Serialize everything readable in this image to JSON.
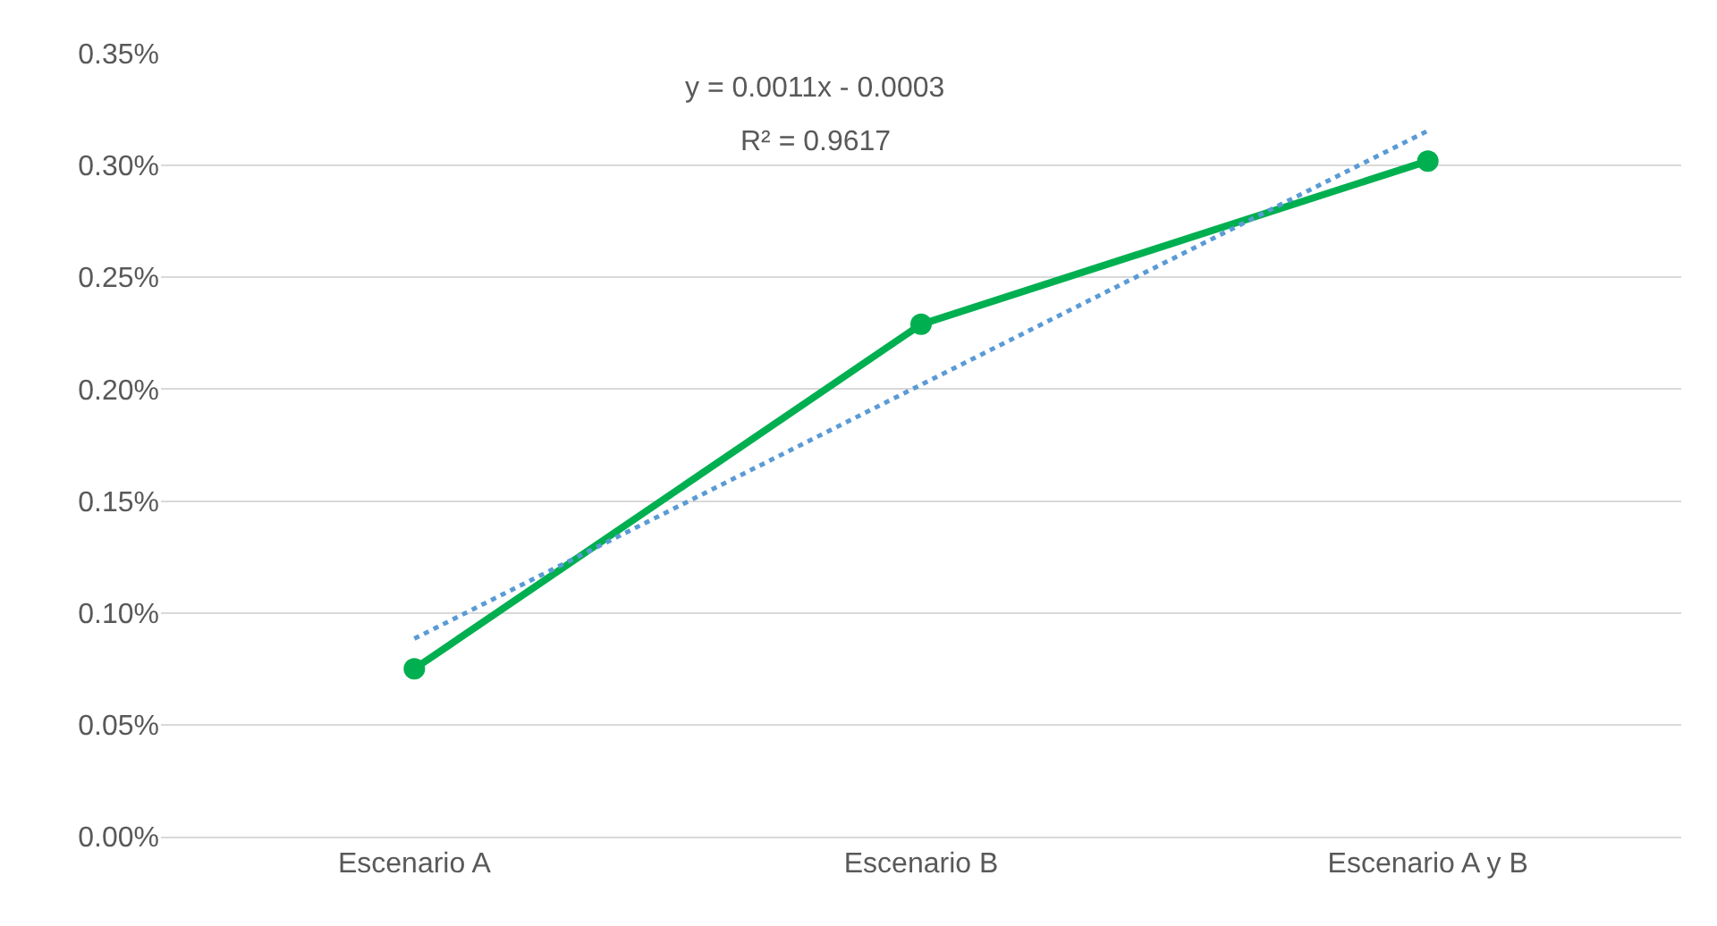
{
  "chart_data": {
    "type": "line",
    "categories": [
      "Escenario A",
      "Escenario B",
      "Escenario A y B"
    ],
    "series": [
      {
        "color": "#00b050",
        "values": [
          0.075,
          0.229,
          0.302
        ],
        "marker": "circle",
        "line_style": "solid"
      },
      {
        "type": "line",
        "color": "#5b9bd5",
        "x": [
          "Escenario A",
          "Escenario A y B"
        ],
        "values": [
          0.0885,
          0.3155
        ],
        "marker": "none",
        "line_style": "dotted"
      }
    ],
    "ylim": [
      0,
      0.35
    ],
    "yticks": [
      {
        "value": 0,
        "label": "0.00%"
      },
      {
        "value": 0.05,
        "label": "0.05%"
      },
      {
        "value": 0.1,
        "label": "0.10%"
      },
      {
        "value": 0.15,
        "label": "0.15%"
      },
      {
        "value": 0.2,
        "label": "0.20%"
      },
      {
        "value": 0.25,
        "label": "0.25%"
      },
      {
        "value": 0.3,
        "label": "0.30%"
      },
      {
        "value": 0.35,
        "label": "0.35%"
      }
    ],
    "grid": "y",
    "annotations": [
      "y = 0.0011x - 0.0003",
      "R² = 0.9617"
    ]
  }
}
